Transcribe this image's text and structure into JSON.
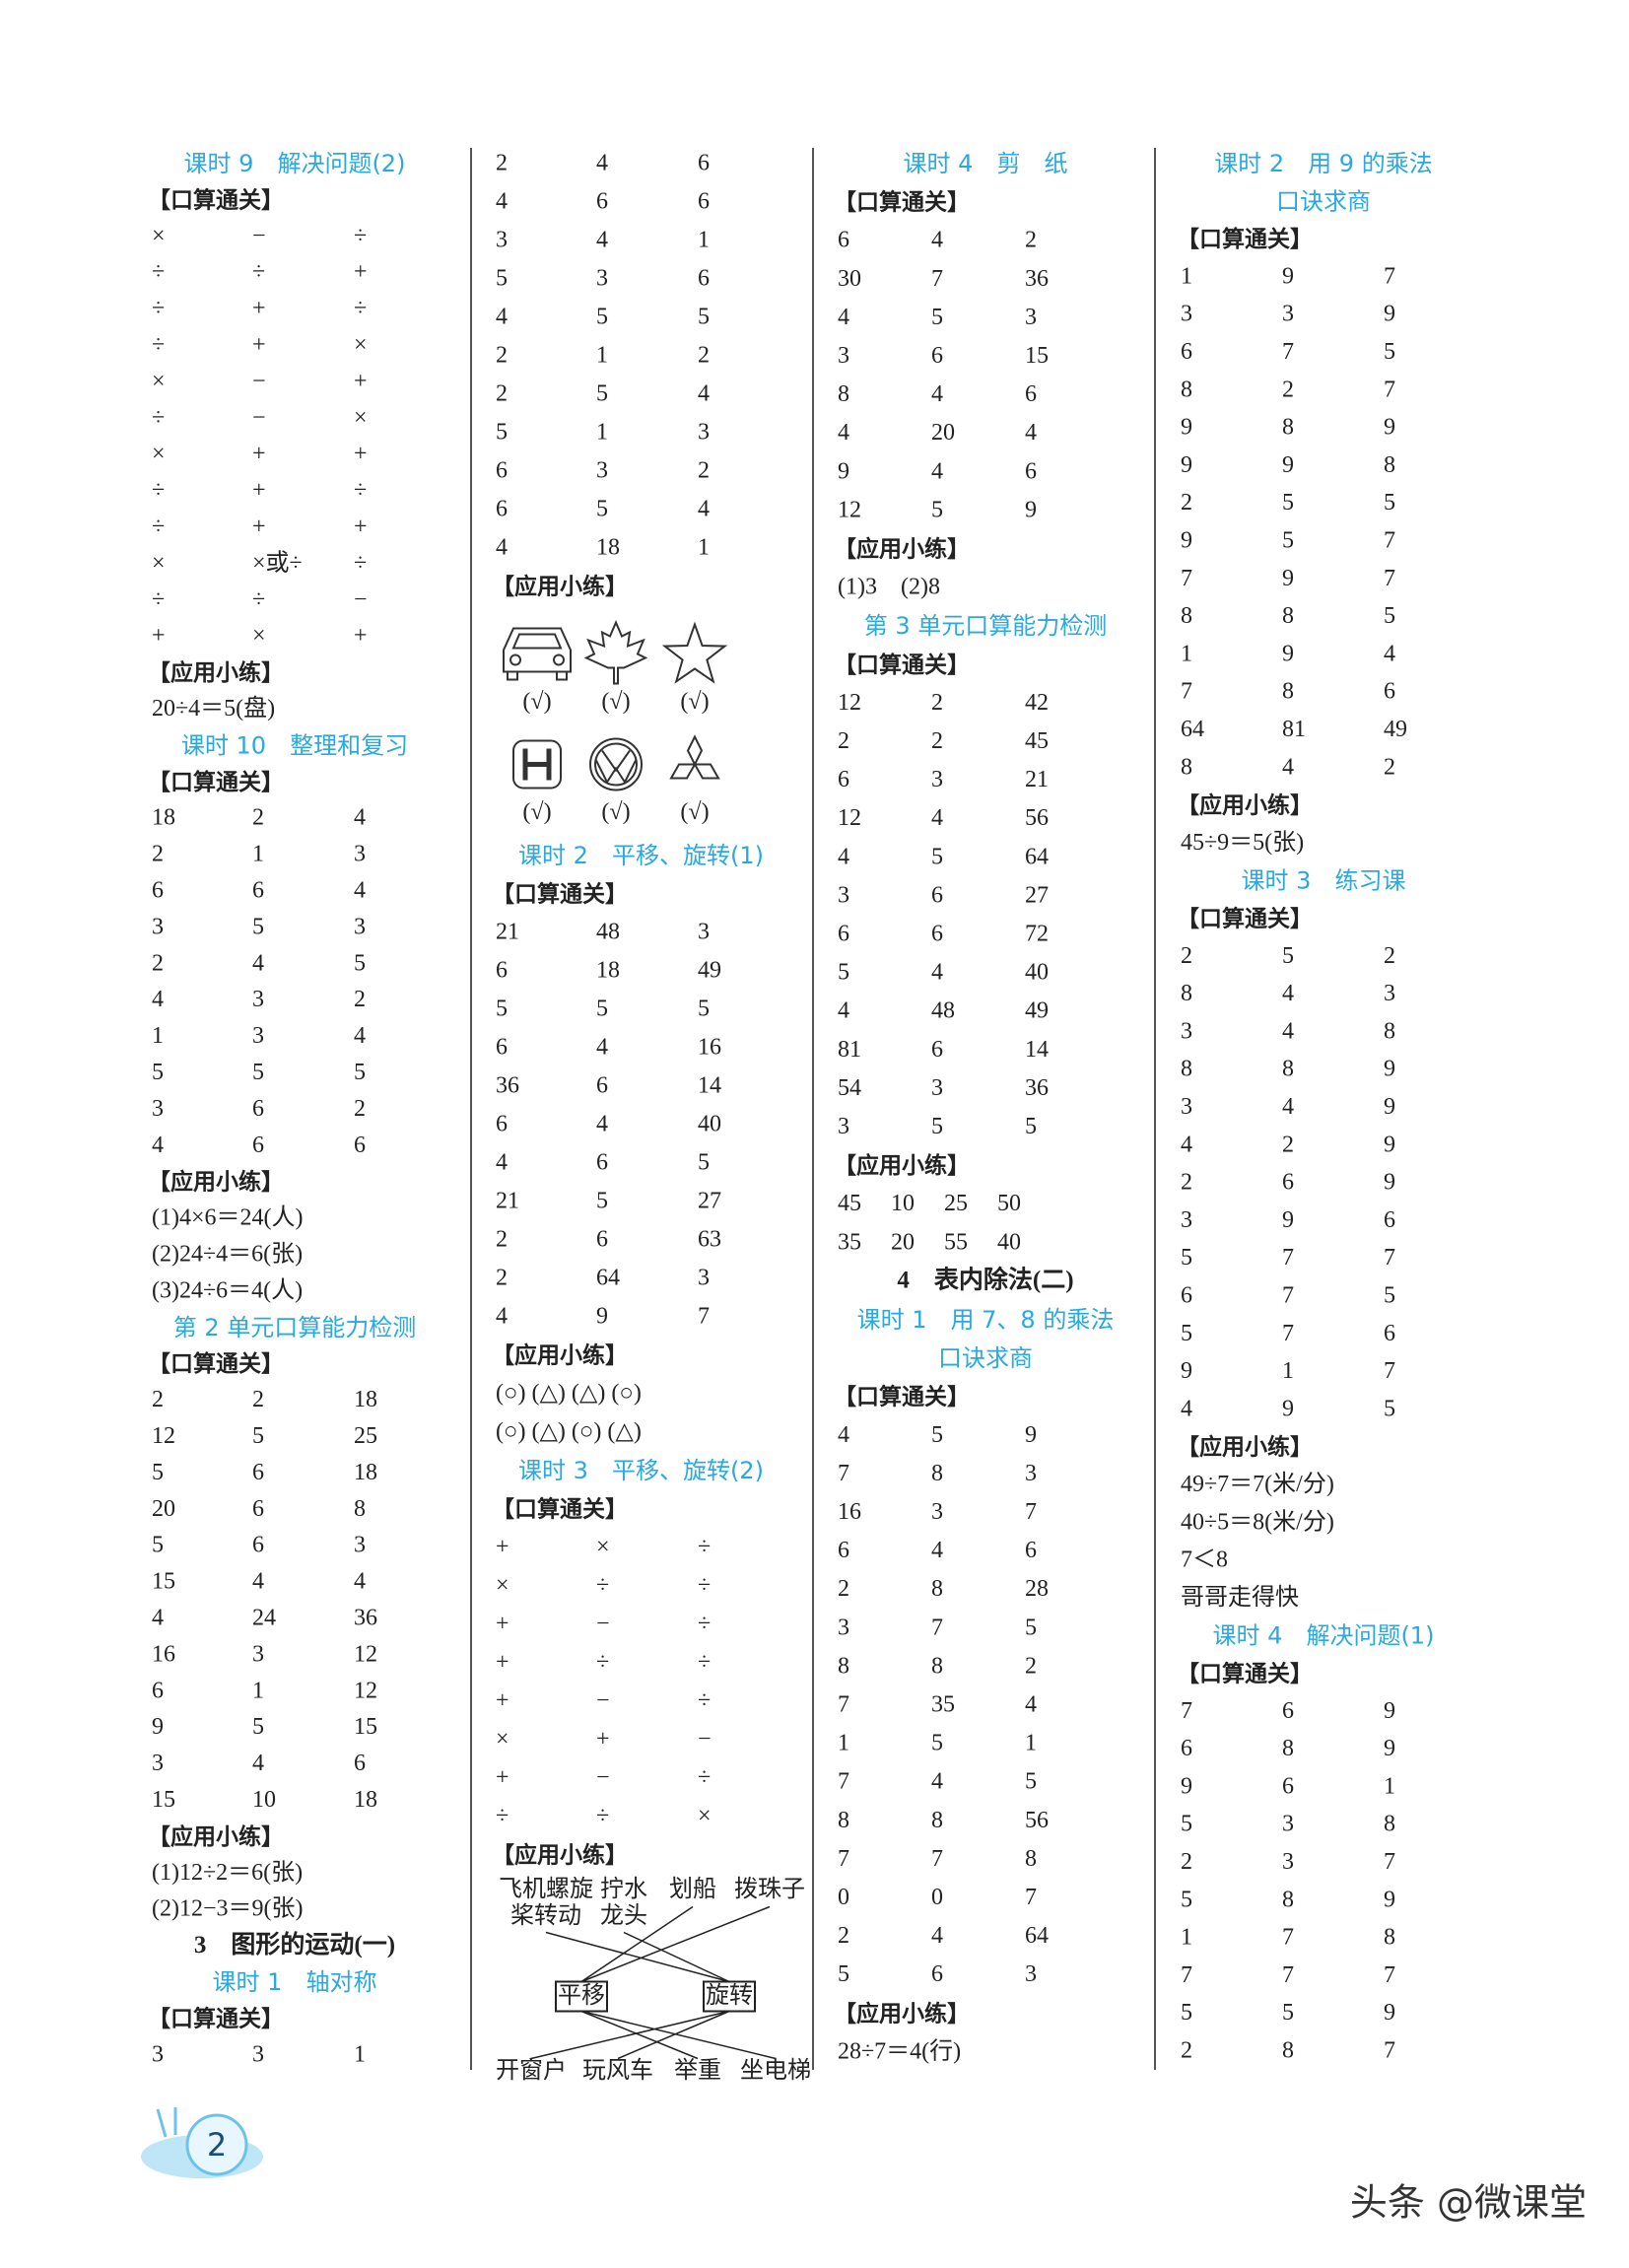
{
  "columns": [
    {
      "blocks": [
        {
          "heading": [
            "课时 9　解决问题(2)"
          ]
        },
        {
          "section": "【口算通关】",
          "rows": [
            [
              "×",
              "−",
              "÷"
            ],
            [
              "÷",
              "÷",
              "+"
            ],
            [
              "÷",
              "+",
              "÷"
            ],
            [
              "÷",
              "+",
              "×"
            ],
            [
              "×",
              "−",
              "+"
            ],
            [
              "÷",
              "−",
              "×"
            ],
            [
              "×",
              "+",
              "+"
            ],
            [
              "÷",
              "+",
              "÷"
            ],
            [
              "÷",
              "+",
              "+"
            ],
            [
              "×",
              "×或÷",
              "÷"
            ],
            [
              "÷",
              "÷",
              "−"
            ],
            [
              "+",
              "×",
              "+"
            ]
          ]
        },
        {
          "section": "【应用小练】",
          "lines": [
            "20÷4＝5(盘)"
          ]
        },
        {
          "heading": [
            "课时 10　整理和复习"
          ]
        },
        {
          "section": "【口算通关】",
          "rows": [
            [
              "18",
              "2",
              "4"
            ],
            [
              "2",
              "1",
              "3"
            ],
            [
              "6",
              "6",
              "4"
            ],
            [
              "3",
              "5",
              "3"
            ],
            [
              "2",
              "4",
              "5"
            ],
            [
              "4",
              "3",
              "2"
            ],
            [
              "1",
              "3",
              "4"
            ],
            [
              "5",
              "5",
              "5"
            ],
            [
              "3",
              "6",
              "2"
            ],
            [
              "4",
              "6",
              "6"
            ]
          ]
        },
        {
          "section": "【应用小练】",
          "lines": [
            "(1)4×6＝24(人)",
            "(2)24÷4＝6(张)",
            "(3)24÷6＝4(人)"
          ]
        },
        {
          "heading": [
            "第 2 单元口算能力检测"
          ]
        },
        {
          "section": "【口算通关】",
          "rows": [
            [
              "2",
              "2",
              "18"
            ],
            [
              "12",
              "5",
              "25"
            ],
            [
              "5",
              "6",
              "18"
            ],
            [
              "20",
              "6",
              "8"
            ],
            [
              "5",
              "6",
              "3"
            ],
            [
              "15",
              "4",
              "4"
            ],
            [
              "4",
              "24",
              "36"
            ],
            [
              "16",
              "3",
              "12"
            ],
            [
              "6",
              "1",
              "12"
            ],
            [
              "9",
              "5",
              "15"
            ],
            [
              "3",
              "4",
              "6"
            ],
            [
              "15",
              "10",
              "18"
            ]
          ]
        },
        {
          "section": "【应用小练】",
          "lines": [
            "(1)12÷2＝6(张)",
            "(2)12−3＝9(张)"
          ]
        },
        {
          "chapter": "3　图形的运动(一)"
        },
        {
          "heading": [
            "课时 1　轴对称"
          ]
        },
        {
          "section": "【口算通关】",
          "rows": [
            [
              "3",
              "3",
              "1"
            ]
          ]
        }
      ]
    },
    {
      "blocks": [
        {
          "rows": [
            [
              "2",
              "4",
              "6"
            ],
            [
              "4",
              "6",
              "6"
            ],
            [
              "3",
              "4",
              "1"
            ],
            [
              "5",
              "3",
              "6"
            ],
            [
              "4",
              "5",
              "5"
            ],
            [
              "2",
              "1",
              "2"
            ],
            [
              "2",
              "5",
              "4"
            ],
            [
              "5",
              "1",
              "3"
            ],
            [
              "6",
              "3",
              "2"
            ],
            [
              "6",
              "5",
              "4"
            ],
            [
              "4",
              "18",
              "1"
            ]
          ]
        },
        {
          "section": "【应用小练】",
          "marks": [
            [
              "(√)",
              "(√)",
              "(√)"
            ],
            [
              "(√)",
              "(√)",
              "(√)"
            ]
          ]
        },
        {
          "heading": [
            "课时 2　平移、旋转(1)"
          ]
        },
        {
          "section": "【口算通关】",
          "rows": [
            [
              "21",
              "48",
              "3"
            ],
            [
              "6",
              "18",
              "49"
            ],
            [
              "5",
              "5",
              "5"
            ],
            [
              "6",
              "4",
              "16"
            ],
            [
              "36",
              "6",
              "14"
            ],
            [
              "6",
              "4",
              "40"
            ],
            [
              "4",
              "6",
              "5"
            ],
            [
              "21",
              "5",
              "27"
            ],
            [
              "2",
              "6",
              "63"
            ],
            [
              "2",
              "64",
              "3"
            ],
            [
              "4",
              "9",
              "7"
            ]
          ]
        },
        {
          "section": "【应用小练】",
          "lines": [
            "(○) (△) (△) (○)",
            "(○) (△) (○) (△)"
          ]
        },
        {
          "heading": [
            "课时 3　平移、旋转(2)"
          ]
        },
        {
          "section": "【口算通关】",
          "rows": [
            [
              "+",
              "×",
              "÷"
            ],
            [
              "×",
              "÷",
              "÷"
            ],
            [
              "+",
              "−",
              "÷"
            ],
            [
              "+",
              "÷",
              "÷"
            ],
            [
              "+",
              "−",
              "÷"
            ],
            [
              "×",
              "+",
              "−"
            ],
            [
              "+",
              "−",
              "÷"
            ],
            [
              "÷",
              "÷",
              "×"
            ]
          ]
        },
        {
          "section": "【应用小练】",
          "matching": {
            "top": [
              [
                "飞机螺旋",
                "桨转动"
              ],
              [
                "拧水",
                "龙头"
              ],
              [
                "划船"
              ],
              [
                "拨珠子"
              ]
            ],
            "middle": [
              "平移",
              "旋转"
            ],
            "bottom": [
              "开窗户",
              "玩风车",
              "举重",
              "坐电梯"
            ]
          }
        }
      ]
    },
    {
      "blocks": [
        {
          "heading": [
            "课时 4　剪　纸"
          ]
        },
        {
          "section": "【口算通关】",
          "rows": [
            [
              "6",
              "4",
              "2"
            ],
            [
              "30",
              "7",
              "36"
            ],
            [
              "4",
              "5",
              "3"
            ],
            [
              "3",
              "6",
              "15"
            ],
            [
              "8",
              "4",
              "6"
            ],
            [
              "4",
              "20",
              "4"
            ],
            [
              "9",
              "4",
              "6"
            ],
            [
              "12",
              "5",
              "9"
            ]
          ]
        },
        {
          "section": "【应用小练】",
          "lines": [
            "(1)3　(2)8"
          ]
        },
        {
          "heading": [
            "第 3 单元口算能力检测"
          ]
        },
        {
          "section": "【口算通关】",
          "rows": [
            [
              "12",
              "2",
              "42"
            ],
            [
              "2",
              "2",
              "45"
            ],
            [
              "6",
              "3",
              "21"
            ],
            [
              "12",
              "4",
              "56"
            ],
            [
              "4",
              "5",
              "64"
            ],
            [
              "3",
              "6",
              "27"
            ],
            [
              "6",
              "6",
              "72"
            ],
            [
              "5",
              "4",
              "40"
            ],
            [
              "4",
              "48",
              "49"
            ],
            [
              "81",
              "6",
              "14"
            ],
            [
              "54",
              "3",
              "36"
            ],
            [
              "3",
              "5",
              "5"
            ]
          ]
        },
        {
          "section": "【应用小练】",
          "rows": [
            [
              "45",
              "10",
              "25",
              "50"
            ],
            [
              "35",
              "20",
              "55",
              "40"
            ]
          ]
        },
        {
          "chapter": "4　表内除法(二)"
        },
        {
          "heading": [
            "课时 1　用 7、8 的乘法",
            "口诀求商"
          ]
        },
        {
          "section": "【口算通关】",
          "rows": [
            [
              "4",
              "5",
              "9"
            ],
            [
              "7",
              "8",
              "3"
            ],
            [
              "16",
              "3",
              "7"
            ],
            [
              "6",
              "4",
              "6"
            ],
            [
              "2",
              "8",
              "28"
            ],
            [
              "3",
              "7",
              "5"
            ],
            [
              "8",
              "8",
              "2"
            ],
            [
              "7",
              "35",
              "4"
            ],
            [
              "1",
              "5",
              "1"
            ],
            [
              "7",
              "4",
              "5"
            ],
            [
              "8",
              "8",
              "56"
            ],
            [
              "7",
              "7",
              "8"
            ],
            [
              "0",
              "0",
              "7"
            ],
            [
              "2",
              "4",
              "64"
            ],
            [
              "5",
              "6",
              "3"
            ]
          ]
        },
        {
          "section": "【应用小练】",
          "lines": [
            "28÷7＝4(行)"
          ]
        }
      ]
    },
    {
      "blocks": [
        {
          "heading": [
            "课时 2　用 9 的乘法",
            "口诀求商"
          ]
        },
        {
          "section": "【口算通关】",
          "rows": [
            [
              "1",
              "9",
              "7"
            ],
            [
              "3",
              "3",
              "9"
            ],
            [
              "6",
              "7",
              "5"
            ],
            [
              "8",
              "2",
              "7"
            ],
            [
              "9",
              "8",
              "9"
            ],
            [
              "9",
              "9",
              "8"
            ],
            [
              "2",
              "5",
              "5"
            ],
            [
              "9",
              "5",
              "7"
            ],
            [
              "7",
              "9",
              "7"
            ],
            [
              "8",
              "8",
              "5"
            ],
            [
              "1",
              "9",
              "4"
            ],
            [
              "7",
              "8",
              "6"
            ],
            [
              "64",
              "81",
              "49"
            ],
            [
              "8",
              "4",
              "2"
            ]
          ]
        },
        {
          "section": "【应用小练】",
          "lines": [
            "45÷9＝5(张)"
          ]
        },
        {
          "heading": [
            "课时 3　练习课"
          ]
        },
        {
          "section": "【口算通关】",
          "rows": [
            [
              "2",
              "5",
              "2"
            ],
            [
              "8",
              "4",
              "3"
            ],
            [
              "3",
              "4",
              "8"
            ],
            [
              "8",
              "8",
              "9"
            ],
            [
              "3",
              "4",
              "9"
            ],
            [
              "4",
              "2",
              "9"
            ],
            [
              "2",
              "6",
              "9"
            ],
            [
              "3",
              "9",
              "6"
            ],
            [
              "5",
              "7",
              "7"
            ],
            [
              "6",
              "7",
              "5"
            ],
            [
              "5",
              "7",
              "6"
            ],
            [
              "9",
              "1",
              "7"
            ],
            [
              "4",
              "9",
              "5"
            ]
          ]
        },
        {
          "section": "【应用小练】",
          "lines": [
            "49÷7＝7(米/分)",
            "40÷5＝8(米/分)",
            "7＜8",
            "哥哥走得快"
          ]
        },
        {
          "heading": [
            "课时 4　解决问题(1)"
          ]
        },
        {
          "section": "【口算通关】",
          "rows": [
            [
              "7",
              "6",
              "9"
            ],
            [
              "6",
              "8",
              "9"
            ],
            [
              "9",
              "6",
              "1"
            ],
            [
              "5",
              "3",
              "8"
            ],
            [
              "2",
              "3",
              "7"
            ],
            [
              "5",
              "8",
              "9"
            ],
            [
              "1",
              "7",
              "8"
            ],
            [
              "7",
              "7",
              "7"
            ],
            [
              "5",
              "5",
              "9"
            ],
            [
              "2",
              "8",
              "7"
            ]
          ]
        }
      ]
    }
  ],
  "page_number": "2",
  "watermark": "头条 @微课堂"
}
